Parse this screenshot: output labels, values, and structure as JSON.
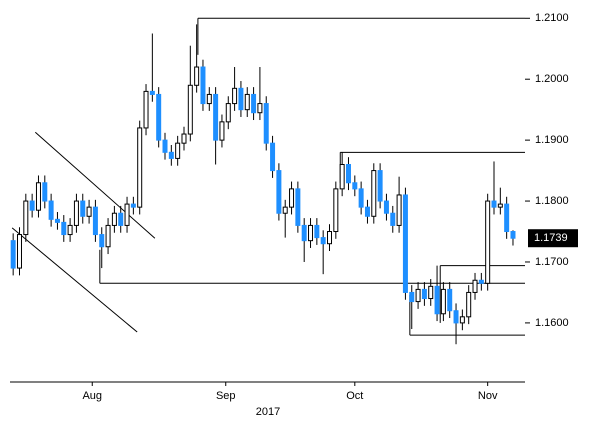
{
  "chart_data": {
    "type": "candlestick",
    "xlabel": "2017",
    "xlim": [
      -0.5,
      80.9
    ],
    "xticks": [
      {
        "value": 12.5,
        "label": "Aug"
      },
      {
        "value": 33.6,
        "label": "Sep"
      },
      {
        "value": 54,
        "label": "Oct"
      },
      {
        "value": 75,
        "label": "Nov"
      }
    ],
    "ylim": [
      1.1503,
      1.213
    ],
    "yticks": [
      {
        "value": 1.16,
        "label": "1.1600"
      },
      {
        "value": 1.17,
        "label": "1.1700"
      },
      {
        "value": 1.18,
        "label": "1.1800"
      },
      {
        "value": 1.19,
        "label": "1.1900"
      },
      {
        "value": 1.2,
        "label": "1.2000"
      },
      {
        "value": 1.21,
        "label": "1.2100"
      }
    ],
    "last_price": {
      "value": 1.1739,
      "label": "1.1739"
    },
    "up_color": "#ffffff",
    "down_color": "#1e8fff",
    "open": [
      1.1735,
      1.169,
      1.1745,
      1.18,
      1.1785,
      1.183,
      1.18,
      1.177,
      1.1765,
      1.1745,
      1.176,
      1.18,
      1.1775,
      1.179,
      1.1745,
      1.1725,
      1.176,
      1.178,
      1.176,
      1.1795,
      1.179,
      1.192,
      1.198,
      1.1975,
      1.19,
      1.188,
      1.187,
      1.1895,
      1.191,
      1.199,
      1.202,
      1.196,
      1.1975,
      1.19,
      1.193,
      1.196,
      1.1985,
      1.195,
      1.1975,
      1.1945,
      1.196,
      1.1895,
      1.185,
      1.178,
      1.179,
      1.182,
      1.176,
      1.1735,
      1.176,
      1.174,
      1.173,
      1.175,
      1.182,
      1.186,
      1.183,
      1.182,
      1.179,
      1.1775,
      1.185,
      1.18,
      1.178,
      1.176,
      1.181,
      1.165,
      1.1635,
      1.1655,
      1.164,
      1.166,
      1.1615,
      1.1655,
      1.162,
      1.16,
      1.161,
      1.165,
      1.167,
      1.1665,
      1.18,
      1.179,
      1.1795,
      1.175
    ],
    "high": [
      1.1747,
      1.1757,
      1.1812,
      1.1812,
      1.1842,
      1.1842,
      1.1812,
      1.1782,
      1.1777,
      1.1772,
      1.1812,
      1.1812,
      1.1802,
      1.1802,
      1.1757,
      1.1772,
      1.1792,
      1.1792,
      1.1807,
      1.1807,
      1.1932,
      1.1992,
      1.2075,
      1.1987,
      1.1912,
      1.1892,
      1.1907,
      1.1922,
      1.2055,
      1.209,
      1.2032,
      1.1987,
      1.1987,
      1.1942,
      1.1972,
      1.202,
      1.1997,
      1.1987,
      1.1987,
      1.202,
      1.1972,
      1.1907,
      1.1862,
      1.1802,
      1.1832,
      1.1832,
      1.1772,
      1.1772,
      1.1772,
      1.1752,
      1.1762,
      1.1832,
      1.188,
      1.1872,
      1.1842,
      1.1832,
      1.1802,
      1.1862,
      1.1862,
      1.1812,
      1.1792,
      1.184,
      1.1822,
      1.1662,
      1.1667,
      1.1667,
      1.1672,
      1.1694,
      1.1667,
      1.1667,
      1.1632,
      1.1622,
      1.1662,
      1.1682,
      1.1682,
      1.1812,
      1.1865,
      1.1822,
      1.1807,
      1.1752
    ],
    "low": [
      1.1678,
      1.1678,
      1.1733,
      1.1773,
      1.1773,
      1.1788,
      1.1758,
      1.1753,
      1.1733,
      1.1733,
      1.1748,
      1.1763,
      1.1763,
      1.1733,
      1.169,
      1.1713,
      1.1748,
      1.1748,
      1.1748,
      1.1778,
      1.1778,
      1.1908,
      1.1963,
      1.1888,
      1.1868,
      1.1858,
      1.1858,
      1.1883,
      1.1898,
      1.1978,
      1.1948,
      1.1948,
      1.186,
      1.1888,
      1.1918,
      1.1948,
      1.1938,
      1.1938,
      1.1933,
      1.1933,
      1.1883,
      1.1838,
      1.1768,
      1.174,
      1.1778,
      1.1748,
      1.17,
      1.1723,
      1.1728,
      1.168,
      1.1718,
      1.1738,
      1.1808,
      1.1818,
      1.1808,
      1.1778,
      1.1763,
      1.1763,
      1.1788,
      1.1768,
      1.1748,
      1.1748,
      1.1638,
      1.159,
      1.1623,
      1.1628,
      1.1628,
      1.1603,
      1.1603,
      1.1608,
      1.1565,
      1.1588,
      1.1598,
      1.1638,
      1.1653,
      1.1653,
      1.1778,
      1.1778,
      1.1738,
      1.1727
    ],
    "close": [
      1.169,
      1.1745,
      1.18,
      1.1785,
      1.183,
      1.18,
      1.177,
      1.1765,
      1.1745,
      1.176,
      1.18,
      1.1775,
      1.179,
      1.1745,
      1.1725,
      1.176,
      1.178,
      1.176,
      1.1795,
      1.179,
      1.192,
      1.198,
      1.1975,
      1.19,
      1.188,
      1.187,
      1.1895,
      1.191,
      1.199,
      1.202,
      1.196,
      1.1975,
      1.19,
      1.193,
      1.196,
      1.1985,
      1.195,
      1.1975,
      1.1945,
      1.196,
      1.1895,
      1.185,
      1.178,
      1.179,
      1.182,
      1.176,
      1.1735,
      1.176,
      1.174,
      1.173,
      1.175,
      1.182,
      1.186,
      1.183,
      1.182,
      1.179,
      1.1775,
      1.185,
      1.18,
      1.178,
      1.176,
      1.181,
      1.165,
      1.1635,
      1.1655,
      1.164,
      1.166,
      1.1615,
      1.1655,
      1.162,
      1.16,
      1.161,
      1.165,
      1.167,
      1.1665,
      1.18,
      1.179,
      1.1795,
      1.175,
      1.1739
    ],
    "trendlines": [
      [
        29.2,
        1.21,
        80.9,
        1.21
      ],
      [
        29.2,
        1.21,
        29.2,
        1.204
      ],
      [
        51.7,
        1.188,
        80.9,
        1.188
      ],
      [
        51.7,
        1.188,
        51.7,
        1.183
      ],
      [
        67.5,
        1.1694,
        80.9,
        1.1694
      ],
      [
        67.5,
        1.1694,
        67.5,
        1.16
      ],
      [
        13.7,
        1.1665,
        80.9,
        1.1665
      ],
      [
        13.7,
        1.1665,
        13.7,
        1.172
      ],
      [
        62.7,
        1.158,
        80.9,
        1.158
      ],
      [
        62.7,
        1.158,
        62.7,
        1.1646
      ],
      [
        3.5,
        1.1913,
        22.4,
        1.1739
      ],
      [
        -0.16,
        1.1756,
        19.6,
        1.1585
      ]
    ]
  }
}
